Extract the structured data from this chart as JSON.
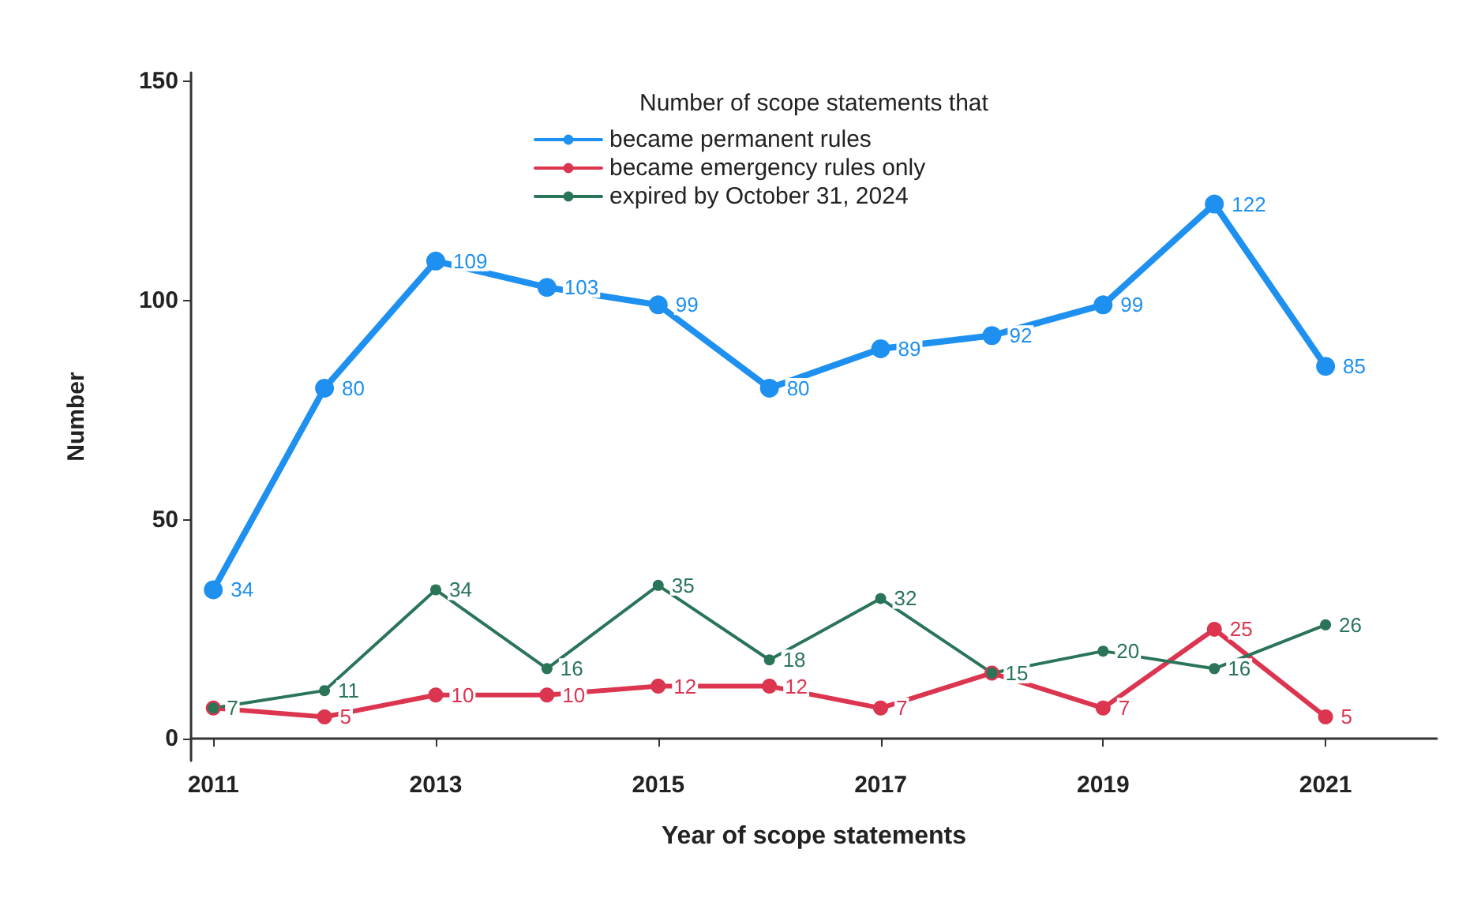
{
  "chart_data": {
    "type": "line",
    "xlabel": "Year of scope statements",
    "ylabel": "Number",
    "legend_title": "Number of scope statements that",
    "legend": "top",
    "x": [
      2011,
      2012,
      2013,
      2014,
      2015,
      2016,
      2017,
      2018,
      2019,
      2020,
      2021
    ],
    "series": [
      {
        "name": "became permanent rules",
        "color": "#1e90f0",
        "values": [
          34,
          80,
          109,
          103,
          99,
          80,
          89,
          92,
          99,
          122,
          85
        ],
        "value_labels": [
          "34",
          "80",
          "109",
          "103",
          "99",
          "80",
          "89",
          "92",
          "99",
          "122",
          "85"
        ]
      },
      {
        "name": "became emergency rules only",
        "color": "#dc3550",
        "values": [
          7,
          5,
          10,
          10,
          12,
          12,
          7,
          15,
          7,
          25,
          5
        ],
        "value_labels": [
          null,
          "5",
          "10",
          "10",
          "12",
          "12",
          "7",
          null,
          "7",
          "25",
          "5"
        ]
      },
      {
        "name": "expired by October 31, 2024",
        "color": "#2a7458",
        "values": [
          7,
          11,
          34,
          16,
          35,
          18,
          32,
          15,
          20,
          16,
          26
        ],
        "value_labels": [
          "7",
          "11",
          "34",
          "16",
          "35",
          "18",
          "32",
          "15",
          "20",
          "16",
          "26"
        ]
      }
    ],
    "xlim": [
      2010.8,
      2022
    ],
    "xticks": [
      2011,
      2013,
      2015,
      2017,
      2019,
      2021
    ],
    "ylim": [
      -5,
      152
    ],
    "yticks": [
      0,
      50,
      100,
      150
    ],
    "grid": false,
    "marker": "circle",
    "line_style": "solid"
  }
}
